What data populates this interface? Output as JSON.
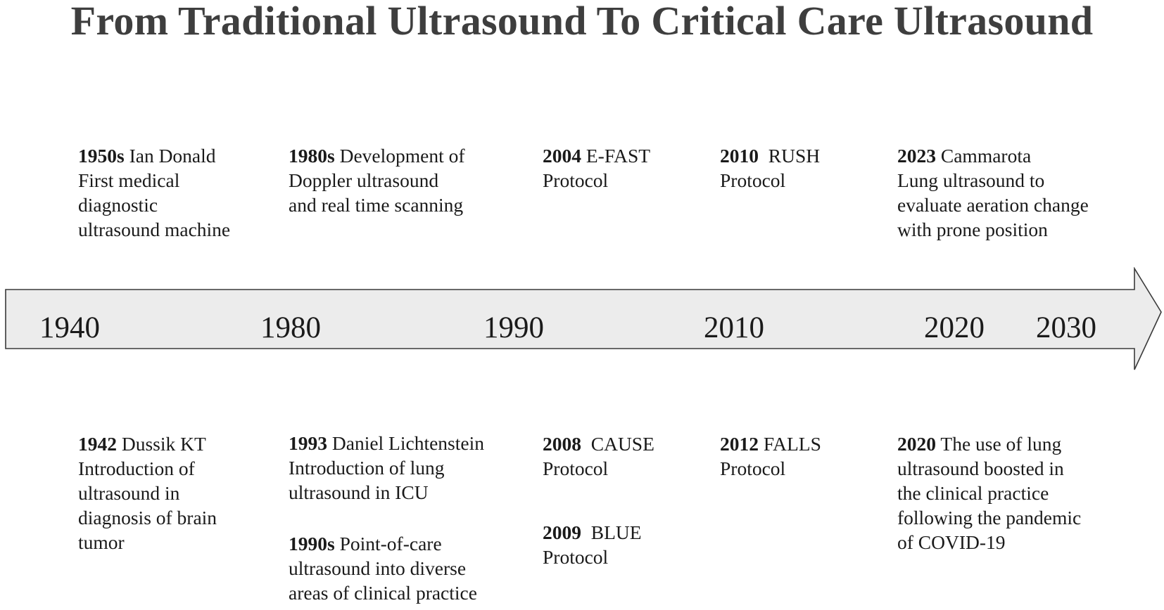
{
  "title": "From Traditional Ultrasound To Critical Care Ultrasound",
  "axis_years": [
    "1940",
    "1980",
    "1990",
    "2010",
    "2020",
    "2030"
  ],
  "events_above": [
    {
      "year": "1950s",
      "lines": [
        "Ian Donald",
        "First medical",
        "diagnostic",
        "ultrasound machine"
      ]
    },
    {
      "year": "1980s",
      "lines": [
        "Development of",
        "Doppler ultrasound",
        "and real time scanning"
      ]
    },
    {
      "year": "2004",
      "lines": [
        "E-FAST",
        "Protocol"
      ]
    },
    {
      "year": "2010",
      "lines": [
        "RUSH",
        "Protocol"
      ]
    },
    {
      "year": "2023",
      "lines": [
        "Cammarota",
        "Lung ultrasound to",
        "evaluate aeration change",
        "with prone position"
      ]
    }
  ],
  "events_below": [
    {
      "year": "1942",
      "lines": [
        "Dussik KT",
        "Introduction of",
        "ultrasound in",
        "diagnosis of brain",
        "tumor"
      ]
    },
    {
      "year": "1993",
      "lines": [
        "Daniel Lichtenstein",
        "Introduction of lung",
        "ultrasound in ICU"
      ]
    },
    {
      "year": "1990s",
      "lines": [
        "Point-of-care",
        "ultrasound into diverse",
        "areas of clinical practice"
      ]
    },
    {
      "year": "2008",
      "lines": [
        "CAUSE",
        "Protocol"
      ]
    },
    {
      "year": "2009",
      "lines": [
        "BLUE",
        "Protocol"
      ]
    },
    {
      "year": "2012",
      "lines": [
        "FALLS",
        "Protocol"
      ]
    },
    {
      "year": "2020",
      "lines": [
        "The use of  lung",
        "ultrasound boosted in",
        "the clinical practice",
        "following the pandemic",
        "of COVID-19"
      ]
    }
  ]
}
